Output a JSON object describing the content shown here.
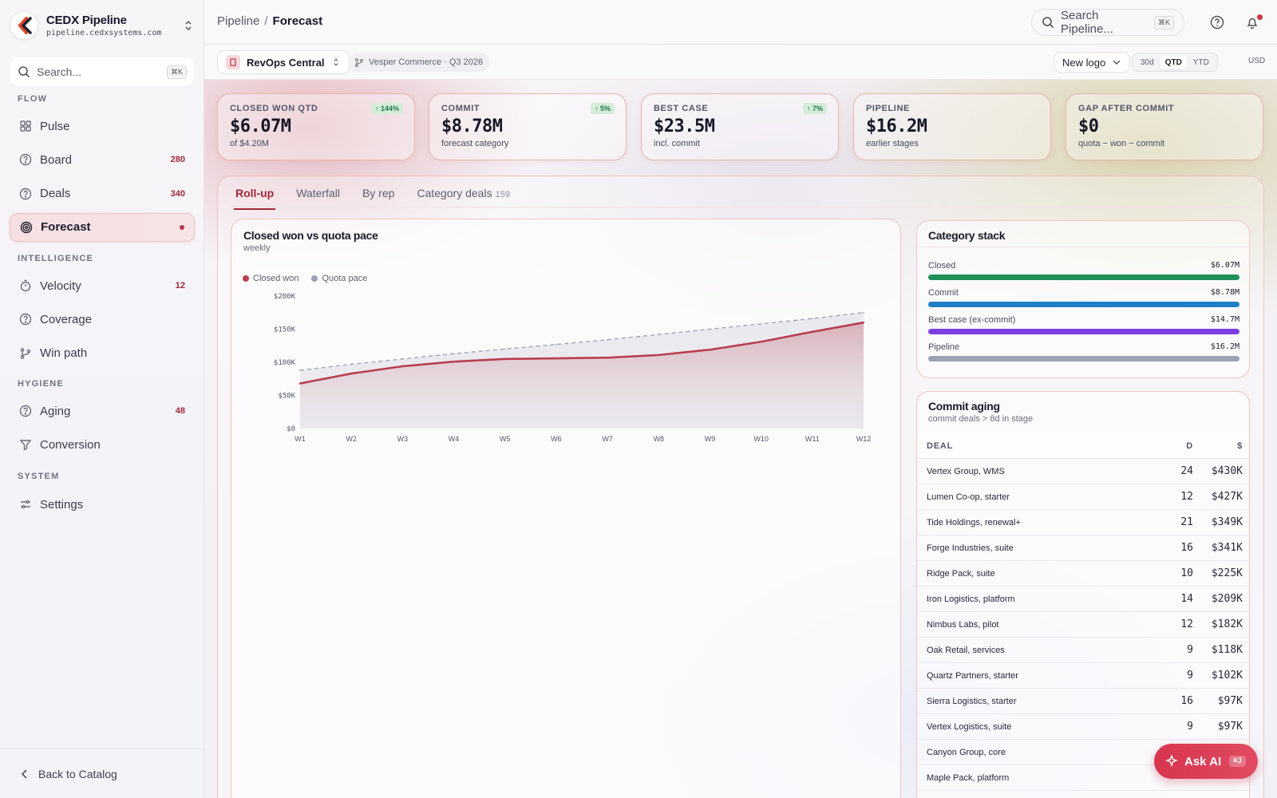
{
  "app": {
    "name": "CEDX Pipeline",
    "url": "pipeline.cedxsystems.com"
  },
  "sidebar": {
    "search_placeholder": "Search...",
    "search_kbd": "⌘K",
    "sections": [
      {
        "title": "FLOW",
        "items": [
          {
            "label": "Pulse",
            "icon": "grid-icon",
            "count": ""
          },
          {
            "label": "Board",
            "icon": "help-circle-icon",
            "count": "280"
          },
          {
            "label": "Deals",
            "icon": "help-circle-icon",
            "count": "340"
          },
          {
            "label": "Forecast",
            "icon": "target-icon",
            "count": "",
            "active": true
          }
        ]
      },
      {
        "title": "INTELLIGENCE",
        "items": [
          {
            "label": "Velocity",
            "icon": "timer-icon",
            "count": "12"
          },
          {
            "label": "Coverage",
            "icon": "help-circle-icon",
            "count": ""
          },
          {
            "label": "Win path",
            "icon": "branch-icon",
            "count": ""
          }
        ]
      },
      {
        "title": "HYGIENE",
        "items": [
          {
            "label": "Aging",
            "icon": "help-circle-icon",
            "count": "48"
          },
          {
            "label": "Conversion",
            "icon": "filter-icon",
            "count": ""
          }
        ]
      },
      {
        "title": "SYSTEM",
        "items": [
          {
            "label": "Settings",
            "icon": "sliders-icon",
            "count": ""
          }
        ]
      }
    ],
    "back_label": "Back to Catalog"
  },
  "topbar": {
    "breadcrumb_parent": "Pipeline",
    "breadcrumb_sep": "/",
    "breadcrumb_current": "Forecast",
    "search_placeholder": "Search Pipeline...",
    "search_kbd": "⌘K"
  },
  "subbar": {
    "workspace": "RevOps Central",
    "context": "Vesper Commerce · Q3 2026",
    "filter": "New logo",
    "ranges": [
      "30d",
      "QTD",
      "YTD"
    ],
    "active_range": "QTD",
    "currency": "USD"
  },
  "kpis": [
    {
      "label": "CLOSED WON QTD",
      "value": "$6.07M",
      "sub": "of $4.20M",
      "badge": "↑ 144%"
    },
    {
      "label": "COMMIT",
      "value": "$8.78M",
      "sub": "forecast category",
      "badge": "↑ 5%"
    },
    {
      "label": "BEST CASE",
      "value": "$23.5M",
      "sub": "incl. commit",
      "badge": "↑ 7%"
    },
    {
      "label": "PIPELINE",
      "value": "$16.2M",
      "sub": "earlier stages",
      "badge": ""
    },
    {
      "label": "GAP AFTER COMMIT",
      "value": "$0",
      "sub": "quota − won − commit",
      "badge": ""
    }
  ],
  "tabs": [
    {
      "label": "Roll-up",
      "count": ""
    },
    {
      "label": "Waterfall",
      "count": ""
    },
    {
      "label": "By rep",
      "count": ""
    },
    {
      "label": "Category deals",
      "count": "159"
    }
  ],
  "chart_card": {
    "title": "Closed won vs quota pace",
    "subtitle": "weekly"
  },
  "chart_data": {
    "type": "line",
    "x": [
      "W1",
      "W2",
      "W3",
      "W4",
      "W5",
      "W6",
      "W7",
      "W8",
      "W9",
      "W10",
      "W11",
      "W12"
    ],
    "series": [
      {
        "name": "Closed won",
        "values": [
          68000,
          83000,
          94000,
          101000,
          105000,
          106000,
          107000,
          111000,
          119000,
          131000,
          146000,
          160000
        ],
        "color": "#b8404f"
      },
      {
        "name": "Quota pace",
        "values": [
          88000,
          97000,
          105000,
          113000,
          120000,
          127000,
          134000,
          142000,
          150000,
          158000,
          166000,
          175000
        ],
        "color": "#9aa0b3"
      }
    ],
    "ylim": [
      0,
      200000
    ],
    "yticks": [
      {
        "value": 0,
        "label": "$0"
      },
      {
        "value": 50000,
        "label": "$50K"
      },
      {
        "value": 100000,
        "label": "$100K"
      },
      {
        "value": 150000,
        "label": "$150K"
      },
      {
        "value": 200000,
        "label": "$200K"
      }
    ],
    "legend": "top-left"
  },
  "category_stack": {
    "title": "Category stack",
    "rows": [
      {
        "label": "Closed",
        "value": "$6.07M",
        "color": "#1f8f5a"
      },
      {
        "label": "Commit",
        "value": "$8.78M",
        "color": "#1e7fc4"
      },
      {
        "label": "Best case (ex-commit)",
        "value": "$14.7M",
        "color": "#7b3ee0"
      },
      {
        "label": "Pipeline",
        "value": "$16.2M",
        "color": "#9aa3b2"
      }
    ]
  },
  "commit_aging": {
    "title": "Commit aging",
    "subtitle": "commit deals > 8d in stage",
    "headers": [
      "DEAL",
      "D",
      "$"
    ],
    "rows": [
      {
        "deal": "Vertex Group, WMS",
        "d": "24",
        "amt": "$430K"
      },
      {
        "deal": "Lumen Co-op, starter",
        "d": "12",
        "amt": "$427K"
      },
      {
        "deal": "Tide Holdings, renewal+",
        "d": "21",
        "amt": "$349K"
      },
      {
        "deal": "Forge Industries, suite",
        "d": "16",
        "amt": "$341K"
      },
      {
        "deal": "Ridge Pack, suite",
        "d": "10",
        "amt": "$225K"
      },
      {
        "deal": "Iron Logistics, platform",
        "d": "14",
        "amt": "$209K"
      },
      {
        "deal": "Nimbus Labs, pilot",
        "d": "12",
        "amt": "$182K"
      },
      {
        "deal": "Oak Retail, services",
        "d": "9",
        "amt": "$118K"
      },
      {
        "deal": "Quartz Partners, starter",
        "d": "9",
        "amt": "$102K"
      },
      {
        "deal": "Sierra Logistics, starter",
        "d": "16",
        "amt": "$97K"
      },
      {
        "deal": "Vertex Logistics, suite",
        "d": "9",
        "amt": "$97K"
      },
      {
        "deal": "Canyon Group, core",
        "d": "",
        "amt": ""
      },
      {
        "deal": "Maple Pack, platform",
        "d": "",
        "amt": ""
      }
    ]
  },
  "ask_ai": {
    "label": "Ask AI",
    "kbd": "⌘J"
  }
}
